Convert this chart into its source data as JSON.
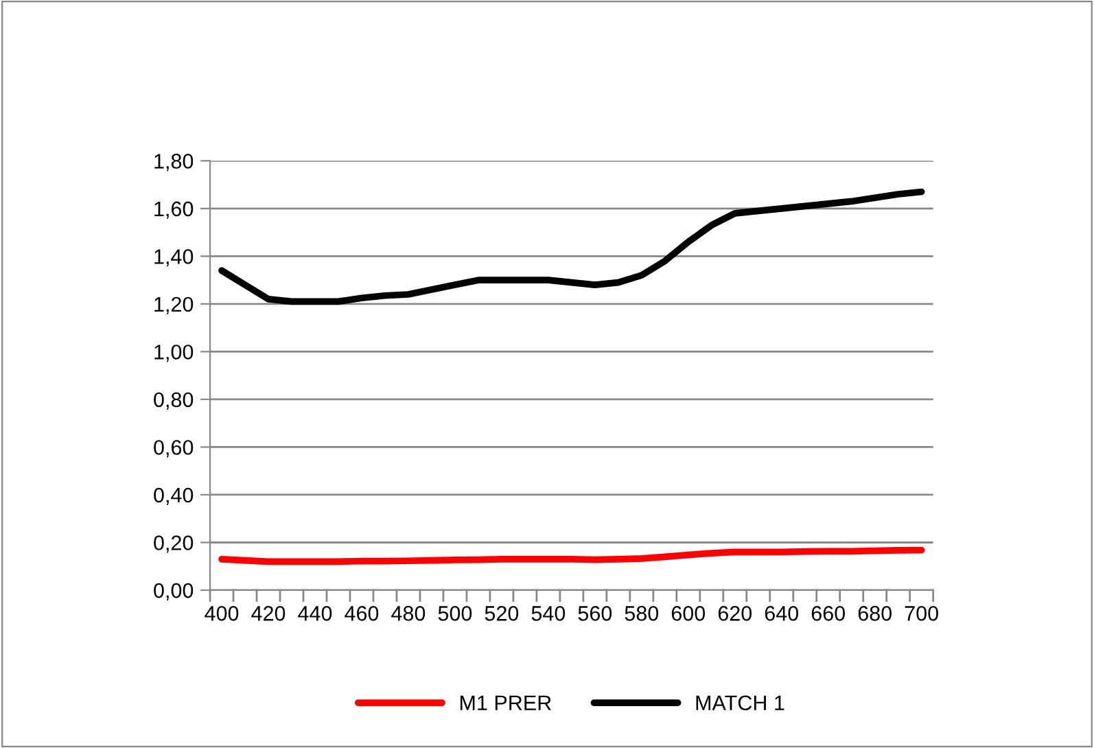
{
  "chart_data": {
    "type": "line",
    "categories": [
      "400",
      null,
      "420",
      null,
      "440",
      null,
      "460",
      null,
      "480",
      null,
      "500",
      null,
      "520",
      null,
      "540",
      null,
      "560",
      null,
      "580",
      null,
      "600",
      null,
      "620",
      null,
      "640",
      null,
      "660",
      null,
      "680",
      null,
      "700"
    ],
    "series": [
      {
        "name": "M1 PRER",
        "color": "#ff0000",
        "values": [
          0.13,
          0.125,
          0.12,
          0.12,
          0.12,
          0.12,
          0.122,
          0.122,
          0.123,
          0.125,
          0.127,
          0.128,
          0.13,
          0.13,
          0.13,
          0.13,
          0.128,
          0.13,
          0.133,
          0.14,
          0.148,
          0.155,
          0.16,
          0.16,
          0.16,
          0.162,
          0.163,
          0.163,
          0.165,
          0.167,
          0.168
        ]
      },
      {
        "name": "MATCH 1",
        "color": "#000000",
        "values": [
          1.34,
          1.28,
          1.22,
          1.21,
          1.21,
          1.21,
          1.225,
          1.235,
          1.24,
          1.26,
          1.28,
          1.3,
          1.3,
          1.3,
          1.3,
          1.29,
          1.28,
          1.29,
          1.32,
          1.38,
          1.46,
          1.53,
          1.58,
          1.59,
          1.6,
          1.61,
          1.62,
          1.63,
          1.645,
          1.66,
          1.67
        ]
      }
    ],
    "ylim": [
      0,
      1.8
    ],
    "yticks": [
      {
        "value": 0,
        "label": "0,00"
      },
      {
        "value": 0.2,
        "label": "0,20"
      },
      {
        "value": 0.4,
        "label": "0,40"
      },
      {
        "value": 0.6,
        "label": "0,60"
      },
      {
        "value": 0.8,
        "label": "0,80"
      },
      {
        "value": 1.0,
        "label": "1,00"
      },
      {
        "value": 1.2,
        "label": "1,20"
      },
      {
        "value": 1.4,
        "label": "1,40"
      },
      {
        "value": 1.6,
        "label": "1,60"
      },
      {
        "value": 1.8,
        "label": "1,80"
      }
    ],
    "grid": "y",
    "legend": "bottom",
    "marker": "none",
    "line_style": "solid"
  }
}
